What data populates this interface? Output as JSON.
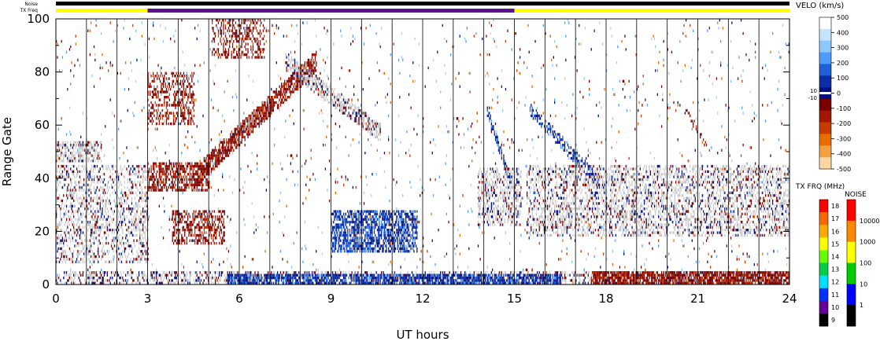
{
  "chart_data": {
    "type": "heatmap",
    "title": "",
    "xlabel": "UT hours",
    "ylabel": "Range Gate",
    "xlim": [
      0,
      24
    ],
    "ylim": [
      0,
      100
    ],
    "x_ticks": [
      "0",
      "3",
      "6",
      "9",
      "12",
      "15",
      "18",
      "21",
      "24"
    ],
    "y_ticks": [
      "0",
      "20",
      "40",
      "60",
      "80",
      "100"
    ],
    "grid": "vertical lines every hour",
    "top_bars": [
      {
        "label": "Noise",
        "segments": [
          {
            "from": 0,
            "to": 24,
            "color": "#000000"
          }
        ]
      },
      {
        "label": "TX Freq",
        "segments": [
          {
            "from": 0,
            "to": 3,
            "color": "#ffff00"
          },
          {
            "from": 3,
            "to": 15,
            "color": "#5b1190"
          },
          {
            "from": 15,
            "to": 24,
            "color": "#ffff00"
          }
        ]
      }
    ],
    "velocity_colorbar": {
      "label": "VELO (km/s)",
      "ticks": [
        "500",
        "400",
        "300",
        "200",
        "100",
        "0",
        "-100",
        "-200",
        "-300",
        "-400",
        "-500"
      ],
      "side_labels": [
        "10",
        "-10"
      ],
      "colors": [
        "#ffffff",
        "#c6e4ff",
        "#8cc8ff",
        "#4e9cff",
        "#1f5fd8",
        "#0b2ea8",
        "#03127a",
        "#7a0000",
        "#a31600",
        "#c73a00",
        "#e86d00",
        "#f5a040",
        "#ffd6a0"
      ]
    },
    "txfreq_colorbar": {
      "label": "TX FRQ (MHz)",
      "ticks": [
        "18",
        "17",
        "16",
        "15",
        "14",
        "13",
        "12",
        "11",
        "10",
        "9"
      ],
      "colors": [
        "#ff0000",
        "#ff6600",
        "#ffaa00",
        "#ffff00",
        "#66ff00",
        "#00cc44",
        "#00e0ff",
        "#0033ff",
        "#660099",
        "#000000"
      ]
    },
    "noise_colorbar": {
      "label": "NOISE",
      "ticks": [
        "10000",
        "1000",
        "100",
        "10",
        "1"
      ],
      "colors": [
        "#ff0000",
        "#ff8800",
        "#ffff00",
        "#00cc00",
        "#0000ff",
        "#000000"
      ]
    },
    "regions": [
      {
        "name": "ground",
        "kind": "ground",
        "type": "box",
        "x": [
          0,
          24
        ],
        "y": [
          0,
          5
        ],
        "density": 0.4
      },
      {
        "name": "near-blue",
        "kind": "blue",
        "type": "box",
        "x": [
          5.6,
          16.5
        ],
        "y": [
          0,
          4
        ],
        "density": 0.75
      },
      {
        "name": "near-red",
        "kind": "red",
        "type": "box",
        "x": [
          17.5,
          24
        ],
        "y": [
          0,
          5
        ],
        "density": 0.75
      },
      {
        "name": "early-grey",
        "kind": "grey",
        "type": "box",
        "x": [
          0,
          3
        ],
        "y": [
          8,
          45
        ],
        "density": 0.35
      },
      {
        "name": "early-top",
        "kind": "grey",
        "type": "box",
        "x": [
          0,
          1.5
        ],
        "y": [
          46,
          54
        ],
        "density": 0.55
      },
      {
        "name": "band-345",
        "kind": "red",
        "type": "box",
        "x": [
          3,
          5
        ],
        "y": [
          35,
          46
        ],
        "density": 0.55
      },
      {
        "name": "blob-4",
        "kind": "red",
        "type": "box",
        "x": [
          3.8,
          5.5
        ],
        "y": [
          15,
          28
        ],
        "density": 0.45
      },
      {
        "name": "blob-35",
        "kind": "red",
        "type": "box",
        "x": [
          3,
          4.5
        ],
        "y": [
          60,
          80
        ],
        "density": 0.35
      },
      {
        "name": "blob-6",
        "kind": "red",
        "type": "box",
        "x": [
          5.1,
          6.8
        ],
        "y": [
          85,
          100
        ],
        "density": 0.4
      },
      {
        "name": "diag-red",
        "kind": "red",
        "type": "band",
        "x0": 4.5,
        "x1": 8.5,
        "y0": 40,
        "y1": 84,
        "w": 7,
        "density": 0.7
      },
      {
        "name": "grey-arc",
        "kind": "grey",
        "type": "band",
        "x0": 7.5,
        "x1": 10.6,
        "y0": 84,
        "y1": 57,
        "w": 6,
        "density": 0.6
      },
      {
        "name": "blue-cluster",
        "kind": "blue",
        "type": "box",
        "x": [
          9,
          11.8
        ],
        "y": [
          12,
          28
        ],
        "density": 0.65
      },
      {
        "name": "blue-arc-14",
        "kind": "blue",
        "type": "band",
        "x0": 14.1,
        "x1": 15,
        "y0": 65,
        "y1": 34,
        "w": 3,
        "density": 0.6
      },
      {
        "name": "mid-grey-14",
        "kind": "grey",
        "type": "box",
        "x": [
          13.8,
          15.2
        ],
        "y": [
          22,
          44
        ],
        "density": 0.45
      },
      {
        "name": "arc-16",
        "kind": "blue",
        "type": "band",
        "x0": 15.5,
        "x1": 17.8,
        "y0": 66,
        "y1": 38,
        "w": 4,
        "density": 0.5
      },
      {
        "name": "mix-16-19",
        "kind": "grey",
        "type": "box",
        "x": [
          15.4,
          19.5
        ],
        "y": [
          18,
          45
        ],
        "density": 0.4
      },
      {
        "name": "mix-19-24",
        "kind": "grey",
        "type": "box",
        "x": [
          19.5,
          24
        ],
        "y": [
          18,
          45
        ],
        "density": 0.4
      },
      {
        "name": "arc-21",
        "kind": "red",
        "type": "band",
        "x0": 20.6,
        "x1": 21.3,
        "y0": 65,
        "y1": 52,
        "w": 2,
        "density": 0.4
      },
      {
        "name": "random-sparse",
        "kind": "sparse",
        "type": "box",
        "x": [
          0,
          24
        ],
        "y": [
          0,
          100
        ],
        "density": 0.02
      }
    ]
  }
}
